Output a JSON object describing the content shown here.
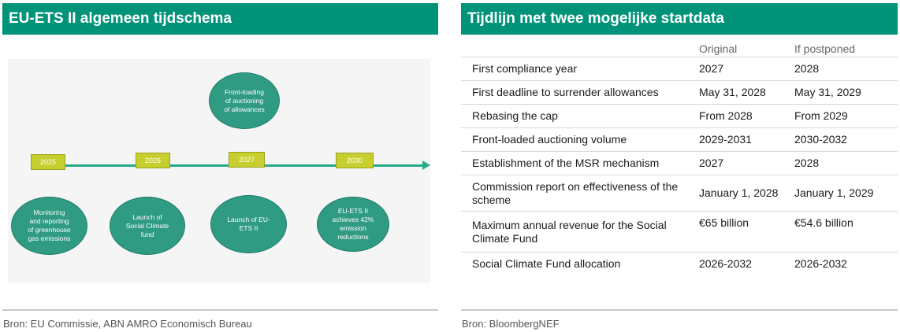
{
  "left_panel": {
    "title": "EU-ETS II algemeen tijdschema",
    "years": [
      "2025",
      "2026",
      "2027",
      "2030"
    ],
    "top_bubble": "Front-loading\nof auctioning\nof allowances",
    "bottom_bubbles": [
      "Monitoring\nand reporting\nof greenhouse\ngas emissions",
      "Launch of\nSocial Climate\nfund",
      "Launch of EU-\nETS II",
      "EU-ETS II\nachieves 42%\nemission\nreductions"
    ],
    "source": "Bron: EU Commissie, ABN AMRO Economisch Bureau"
  },
  "right_panel": {
    "title": "Tijdlijn met twee mogelijke startdata",
    "columns": [
      "",
      "Original",
      "If postponed"
    ],
    "rows": [
      {
        "label": "First compliance year",
        "original": "2027",
        "postponed": "2028"
      },
      {
        "label": "First deadline to surrender allowances",
        "original": "May 31, 2028",
        "postponed": "May 31, 2029"
      },
      {
        "label": "Rebasing the cap",
        "original": "From 2028",
        "postponed": "From 2029"
      },
      {
        "label": "Front-loaded auctioning volume",
        "original": "2029-2031",
        "postponed": "2030-2032"
      },
      {
        "label": "Establishment of the MSR mechanism",
        "original": "2027",
        "postponed": "2028"
      },
      {
        "label": "Commission report on effectiveness of the scheme",
        "original": "January 1, 2028",
        "postponed": "January 1, 2029"
      },
      {
        "label": "Maximum annual revenue for the Social Climate Fund",
        "original": "€65 billion",
        "postponed": "€54.6 billion"
      },
      {
        "label": "Social Climate Fund allocation",
        "original": "2026-2032",
        "postponed": "2026-2032"
      }
    ],
    "source": "Bron: BloombergNEF"
  },
  "colors": {
    "header_green": "#00937a",
    "bubble_green": "#2f9b83",
    "year_box_yellow": "#c7cf2f",
    "timeline_teal": "#26a98a"
  }
}
